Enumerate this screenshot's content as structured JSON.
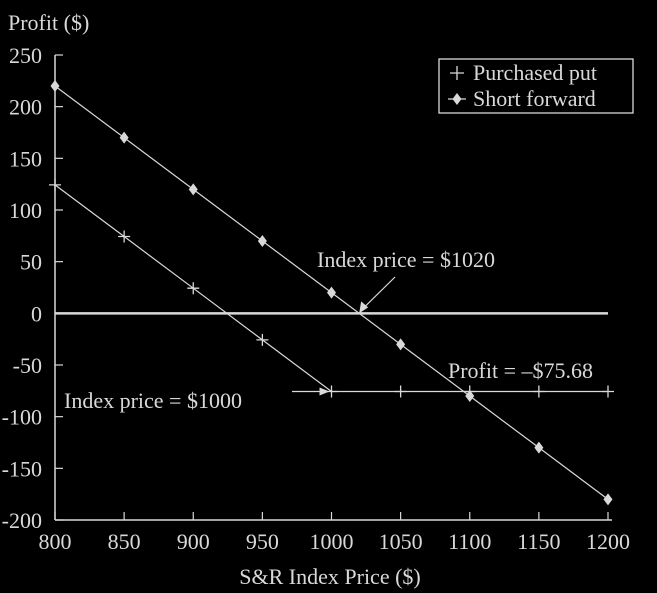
{
  "chart_data": {
    "type": "line",
    "ylabel": "Profit ($)",
    "xlabel": "S&R Index Price ($)",
    "xlim": [
      800,
      1200
    ],
    "ylim": [
      -200,
      250
    ],
    "x_ticks": [
      "800",
      "850",
      "900",
      "950",
      "1000",
      "1050",
      "1100",
      "1150",
      "1200"
    ],
    "y_ticks": [
      "250",
      "200",
      "150",
      "100",
      "50",
      "0",
      "-50",
      "-100",
      "-150",
      "-200"
    ],
    "x_tick_values": [
      800,
      850,
      900,
      950,
      1000,
      1050,
      1100,
      1150,
      1200
    ],
    "y_tick_values": [
      250,
      200,
      150,
      100,
      50,
      0,
      -50,
      -100,
      -150,
      -200
    ],
    "legend_position": "top-right",
    "series": [
      {
        "name": "Purchased put",
        "marker": "plus",
        "color": "#d9d9d9",
        "x": [
          800,
          850,
          900,
          950,
          1000,
          1050,
          1100,
          1150,
          1200
        ],
        "y": [
          124.32,
          74.32,
          24.32,
          -25.68,
          -75.68,
          -75.68,
          -75.68,
          -75.68,
          -75.68
        ]
      },
      {
        "name": "Short forward",
        "marker": "diamond",
        "color": "#d9d9d9",
        "x": [
          800,
          850,
          900,
          950,
          1000,
          1050,
          1100,
          1150,
          1200
        ],
        "y": [
          220,
          170,
          120,
          70,
          20,
          -30,
          -80,
          -130,
          -180
        ]
      }
    ],
    "annotations": [
      {
        "id": "ann1020",
        "text": "Index price = $1020",
        "x": 1020,
        "y": 0
      },
      {
        "id": "ann1000",
        "text": "Index price = $1000",
        "x": 1000,
        "y": -75.68
      },
      {
        "id": "annProfit",
        "text": "Profit = –$75.68"
      }
    ]
  }
}
